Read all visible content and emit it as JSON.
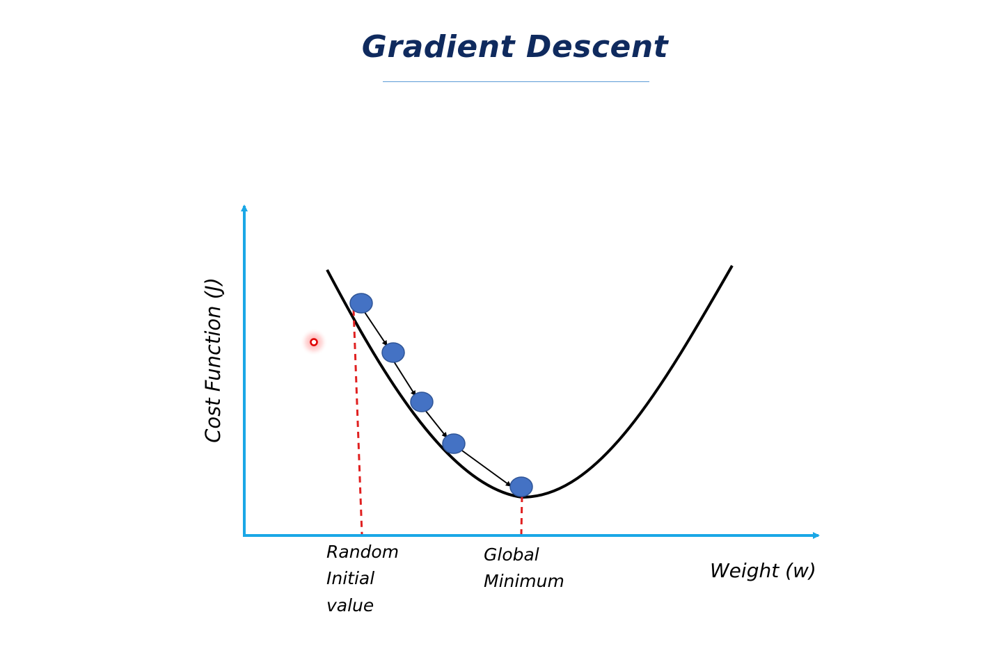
{
  "title": "Gradient Descent",
  "y_axis_label": "Cost Function (J)",
  "x_axis_label": "Weight (w)",
  "start_label": [
    "Random",
    "Initial",
    "value"
  ],
  "minimum_label": [
    "Global",
    "Minimum"
  ],
  "colors": {
    "title": "#0f2a5e",
    "title_underline": "#5b9bd5",
    "axis": "#1aa7e6",
    "curve": "#000000",
    "step_point": "#4472c4",
    "step_point_outline": "#2f5597",
    "guide_line": "#e02020",
    "cursor_dot": "#e00000"
  },
  "steps": 5
}
